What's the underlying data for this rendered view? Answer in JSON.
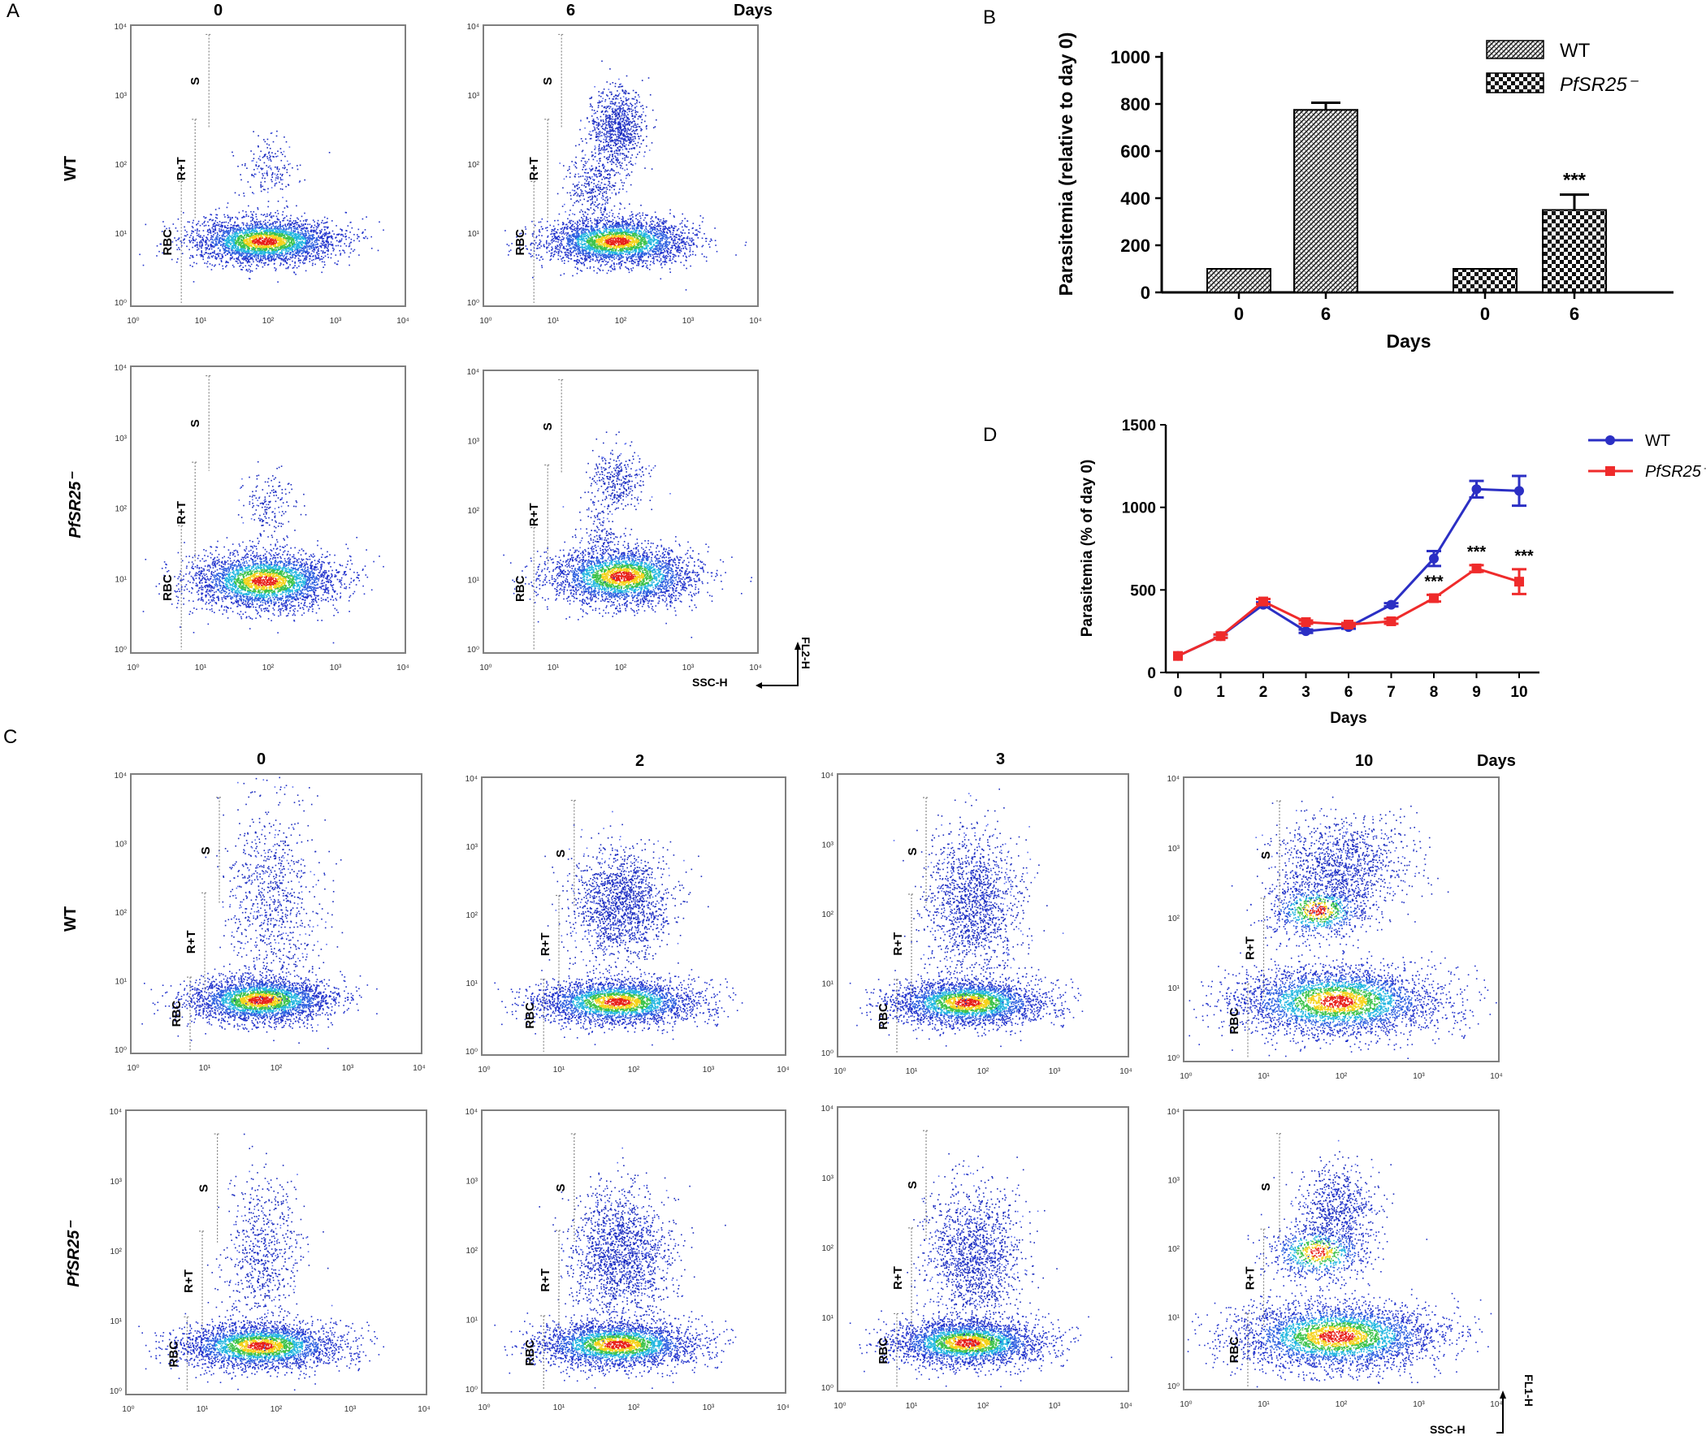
{
  "panels": {
    "a": "A",
    "b": "B",
    "c": "C",
    "d": "D"
  },
  "panel_a": {
    "columns": [
      "0",
      "6"
    ],
    "days_label": "Days",
    "rows": [
      "WT",
      "PfSR25⁻"
    ],
    "gates": [
      "S",
      "R+T",
      "RBC"
    ],
    "axis_x": "SSC-H",
    "axis_y": "FL2-H"
  },
  "panel_c": {
    "columns": [
      "0",
      "2",
      "3",
      "10"
    ],
    "days_label": "Days",
    "rows": [
      "WT",
      "PfSR25⁻"
    ],
    "gates": [
      "S",
      "R+T",
      "RBC"
    ],
    "axis_x": "SSC-H",
    "axis_y": "FL1-H"
  },
  "log_ticks": [
    "10⁰",
    "10¹",
    "10²",
    "10³",
    "10⁴"
  ],
  "colors": {
    "wt_line": "#2b2fc4",
    "mut_line": "#ef2b2b",
    "frame": "#7f7f7f"
  },
  "chart_data": [
    {
      "id": "B",
      "type": "bar",
      "ylabel": "Parasitemia (relative to day 0)",
      "xlabel": "Days",
      "ylim": [
        0,
        1000
      ],
      "yticks": [
        0,
        200,
        400,
        600,
        800,
        1000
      ],
      "categories": [
        "0",
        "6",
        "0",
        "6"
      ],
      "groups": [
        "WT",
        "WT",
        "PfSR25⁻",
        "PfSR25⁻"
      ],
      "values": [
        100,
        775,
        100,
        350
      ],
      "errors": [
        0,
        30,
        0,
        65
      ],
      "annotations": [
        "",
        "",
        "",
        "***"
      ],
      "legend": [
        "WT",
        "PfSR25⁻"
      ],
      "legend_position": "top-right"
    },
    {
      "id": "D",
      "type": "line",
      "ylabel": "Parasitemia (% of day 0)",
      "xlabel": "Days",
      "ylim": [
        0,
        1500
      ],
      "yticks": [
        0,
        500,
        1000,
        1500
      ],
      "x": [
        "0",
        "1",
        "2",
        "3",
        "6",
        "7",
        "8",
        "9",
        "10"
      ],
      "series": [
        {
          "name": "WT",
          "values": [
            100,
            220,
            410,
            250,
            275,
            410,
            690,
            1110,
            1100
          ],
          "errors": [
            0,
            10,
            15,
            10,
            10,
            10,
            45,
            50,
            90
          ]
        },
        {
          "name": "PfSR25⁻",
          "values": [
            100,
            220,
            430,
            305,
            290,
            310,
            450,
            630,
            550
          ],
          "errors": [
            0,
            10,
            15,
            10,
            10,
            15,
            20,
            20,
            75
          ]
        }
      ],
      "annotations": [
        {
          "x": "8",
          "text": "***"
        },
        {
          "x": "9",
          "text": "***"
        },
        {
          "x": "10",
          "text": "***"
        }
      ],
      "legend_position": "top-right"
    }
  ]
}
